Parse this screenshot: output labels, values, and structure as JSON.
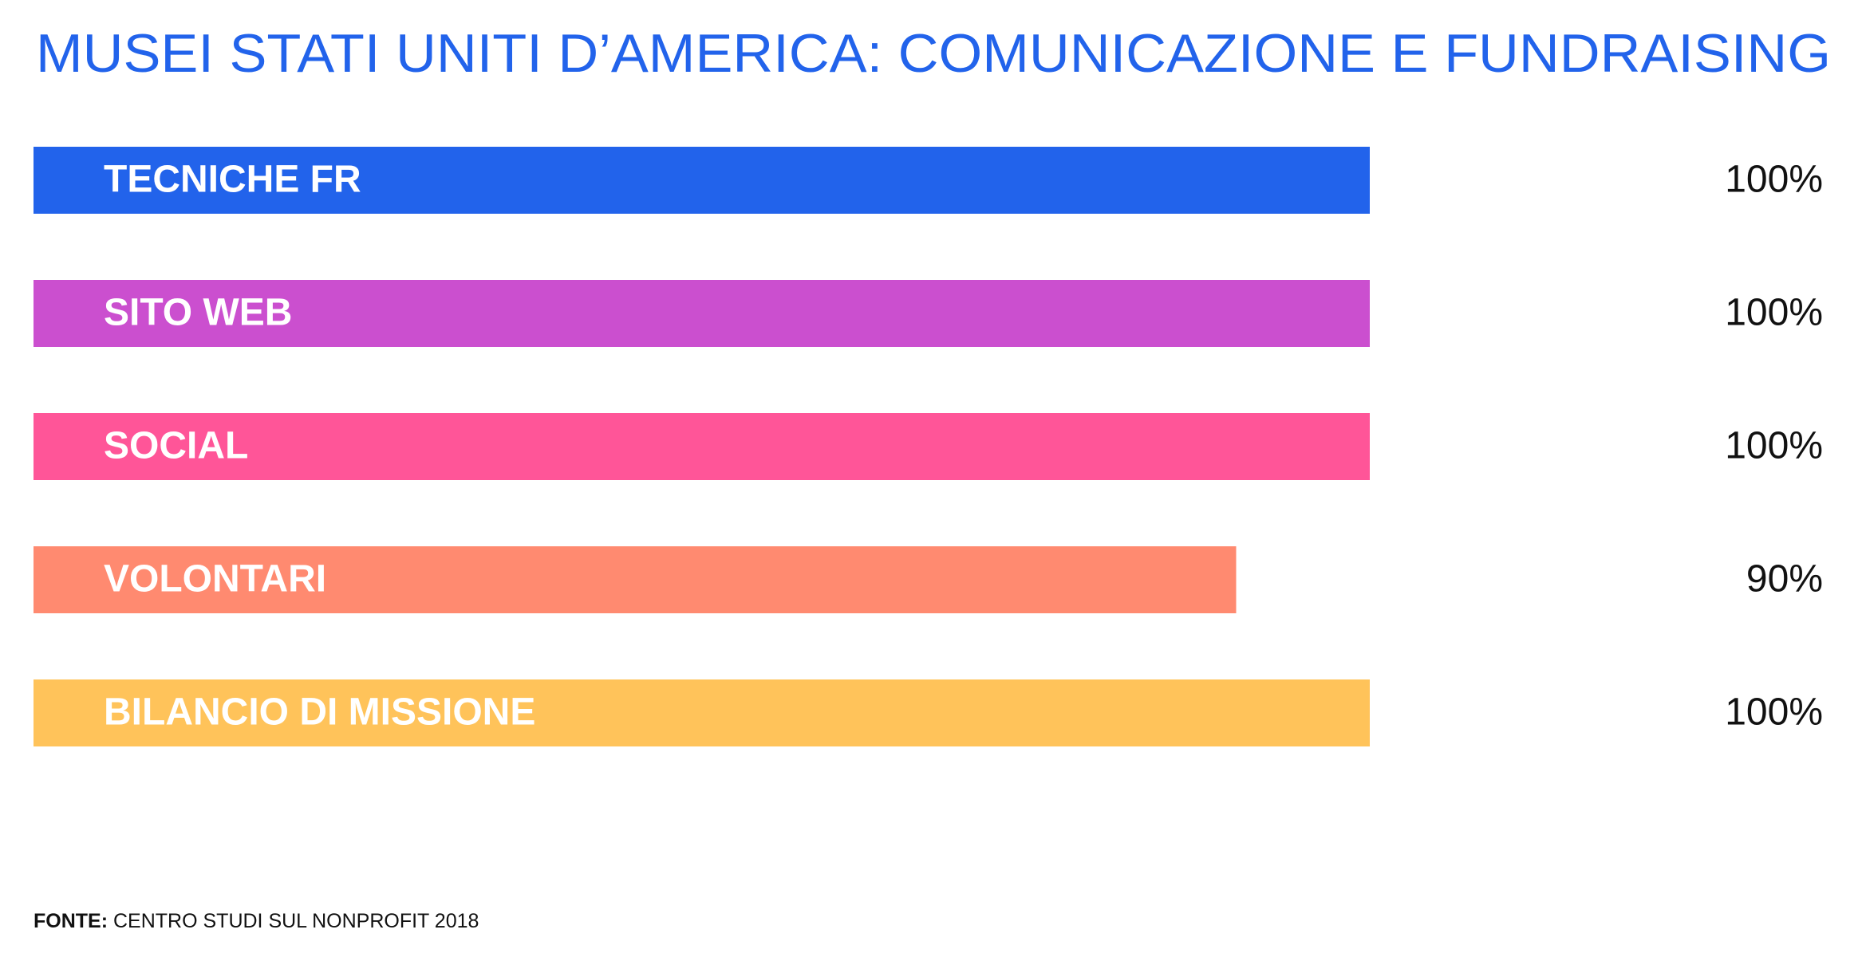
{
  "chart_data": {
    "type": "hbar",
    "title": "MUSEI STATI UNITI D’AMERICA: COMUNICAZIONE E FUNDRAISING",
    "categories": [
      "TECNICHE FR",
      "SITO WEB",
      "SOCIAL",
      "VOLONTARI",
      "BILANCIO DI MISSIONE"
    ],
    "values": [
      100,
      100,
      100,
      90,
      100
    ],
    "value_labels": [
      "100%",
      "100%",
      "100%",
      "90%",
      "100%"
    ],
    "colors": [
      "#2263eb",
      "#cb4fcf",
      "#ff5598",
      "#ff8a70",
      "#ffc35a"
    ],
    "xlim": [
      0,
      100
    ],
    "source_label": "FONTE:",
    "source_text": "CENTRO STUDI SUL NONPROFIT 2018"
  }
}
